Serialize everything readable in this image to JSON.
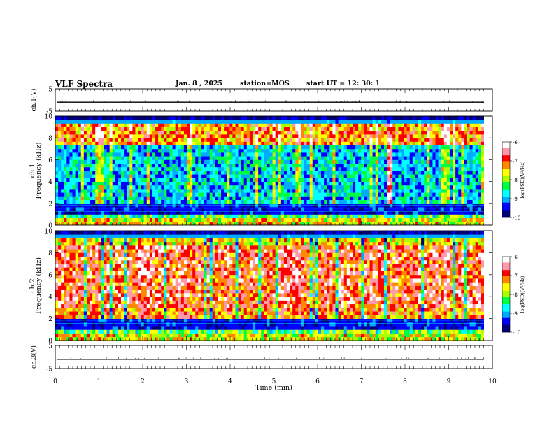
{
  "header": {
    "title": "VLF Spectra",
    "date": "Jan. 8 , 2025",
    "station": "station=MOS",
    "start_ut": "start UT = 12: 30: 1"
  },
  "colors": {
    "colormap": [
      "#00007a",
      "#0000ff",
      "#00aaff",
      "#00ffff",
      "#00ff40",
      "#aaff00",
      "#ffff00",
      "#ff8800",
      "#ff0000",
      "#ff99aa",
      "#ffffff"
    ],
    "trace": "#000000"
  },
  "chart_data": [
    {
      "type": "line",
      "name": "ch1-waveform",
      "ylabel": "ch.1(V)",
      "ylim": [
        -5,
        5
      ],
      "yticks": [
        "5",
        "-5"
      ],
      "xlim": [
        0,
        10
      ],
      "series": [
        {
          "values_constant": -1
        }
      ]
    },
    {
      "type": "heatmap",
      "name": "ch1-spectrogram",
      "ylabel": "ch.1\nFrequency (kHz)",
      "ylabel_line1": "ch.1",
      "ylabel_line2": "Frequency (kHz)",
      "xlim": [
        0,
        10
      ],
      "ylim": [
        0,
        10
      ],
      "yticks": [
        "0",
        "2",
        "4",
        "6",
        "8",
        "10"
      ],
      "features": {
        "band_low_khz": [
          0,
          1.1
        ],
        "gap_khz": [
          1.1,
          1.9
        ],
        "main_band_khz": [
          2,
          9.2
        ],
        "strong_band_khz": [
          7.5,
          9.2
        ],
        "top_dark_khz": [
          9.3,
          10
        ],
        "burst_min": [
          7.6,
          7.75
        ]
      },
      "colorbar": {
        "label": "log(PSD)(V²/Hz)",
        "ticks": [
          "-6",
          "-7",
          "-8",
          "-9",
          "-10"
        ],
        "range": [
          -10,
          -6
        ]
      }
    },
    {
      "type": "heatmap",
      "name": "ch2-spectrogram",
      "ylabel": "ch.2\nFrequency (kHz)",
      "ylabel_line1": "ch.2",
      "ylabel_line2": "Frequency (kHz)",
      "xlim": [
        0,
        10
      ],
      "ylim": [
        0,
        10
      ],
      "yticks": [
        "0",
        "2",
        "4",
        "6",
        "8",
        "10"
      ],
      "features": {
        "band_low_khz": [
          0,
          1.1
        ],
        "gap_khz": [
          1.1,
          1.9
        ],
        "main_band_khz": [
          2,
          9.0
        ],
        "top_dark_khz": [
          9.3,
          10
        ]
      },
      "colorbar": {
        "label": "log(PSD)(V²/Hz)",
        "ticks": [
          "-6",
          "-7",
          "-8",
          "-9",
          "-10"
        ],
        "range": [
          -10,
          -6
        ]
      }
    },
    {
      "type": "line",
      "name": "ch3-waveform",
      "ylabel": "ch.3(V)",
      "ylim": [
        -5,
        5
      ],
      "yticks": [
        "5",
        "-5"
      ],
      "xlim": [
        0,
        10
      ],
      "xlabel": "Time (min)",
      "xticks": [
        "0",
        "1",
        "2",
        "3",
        "4",
        "5",
        "6",
        "7",
        "8",
        "9",
        "10"
      ],
      "series": [
        {
          "values_constant": -1
        }
      ]
    }
  ]
}
